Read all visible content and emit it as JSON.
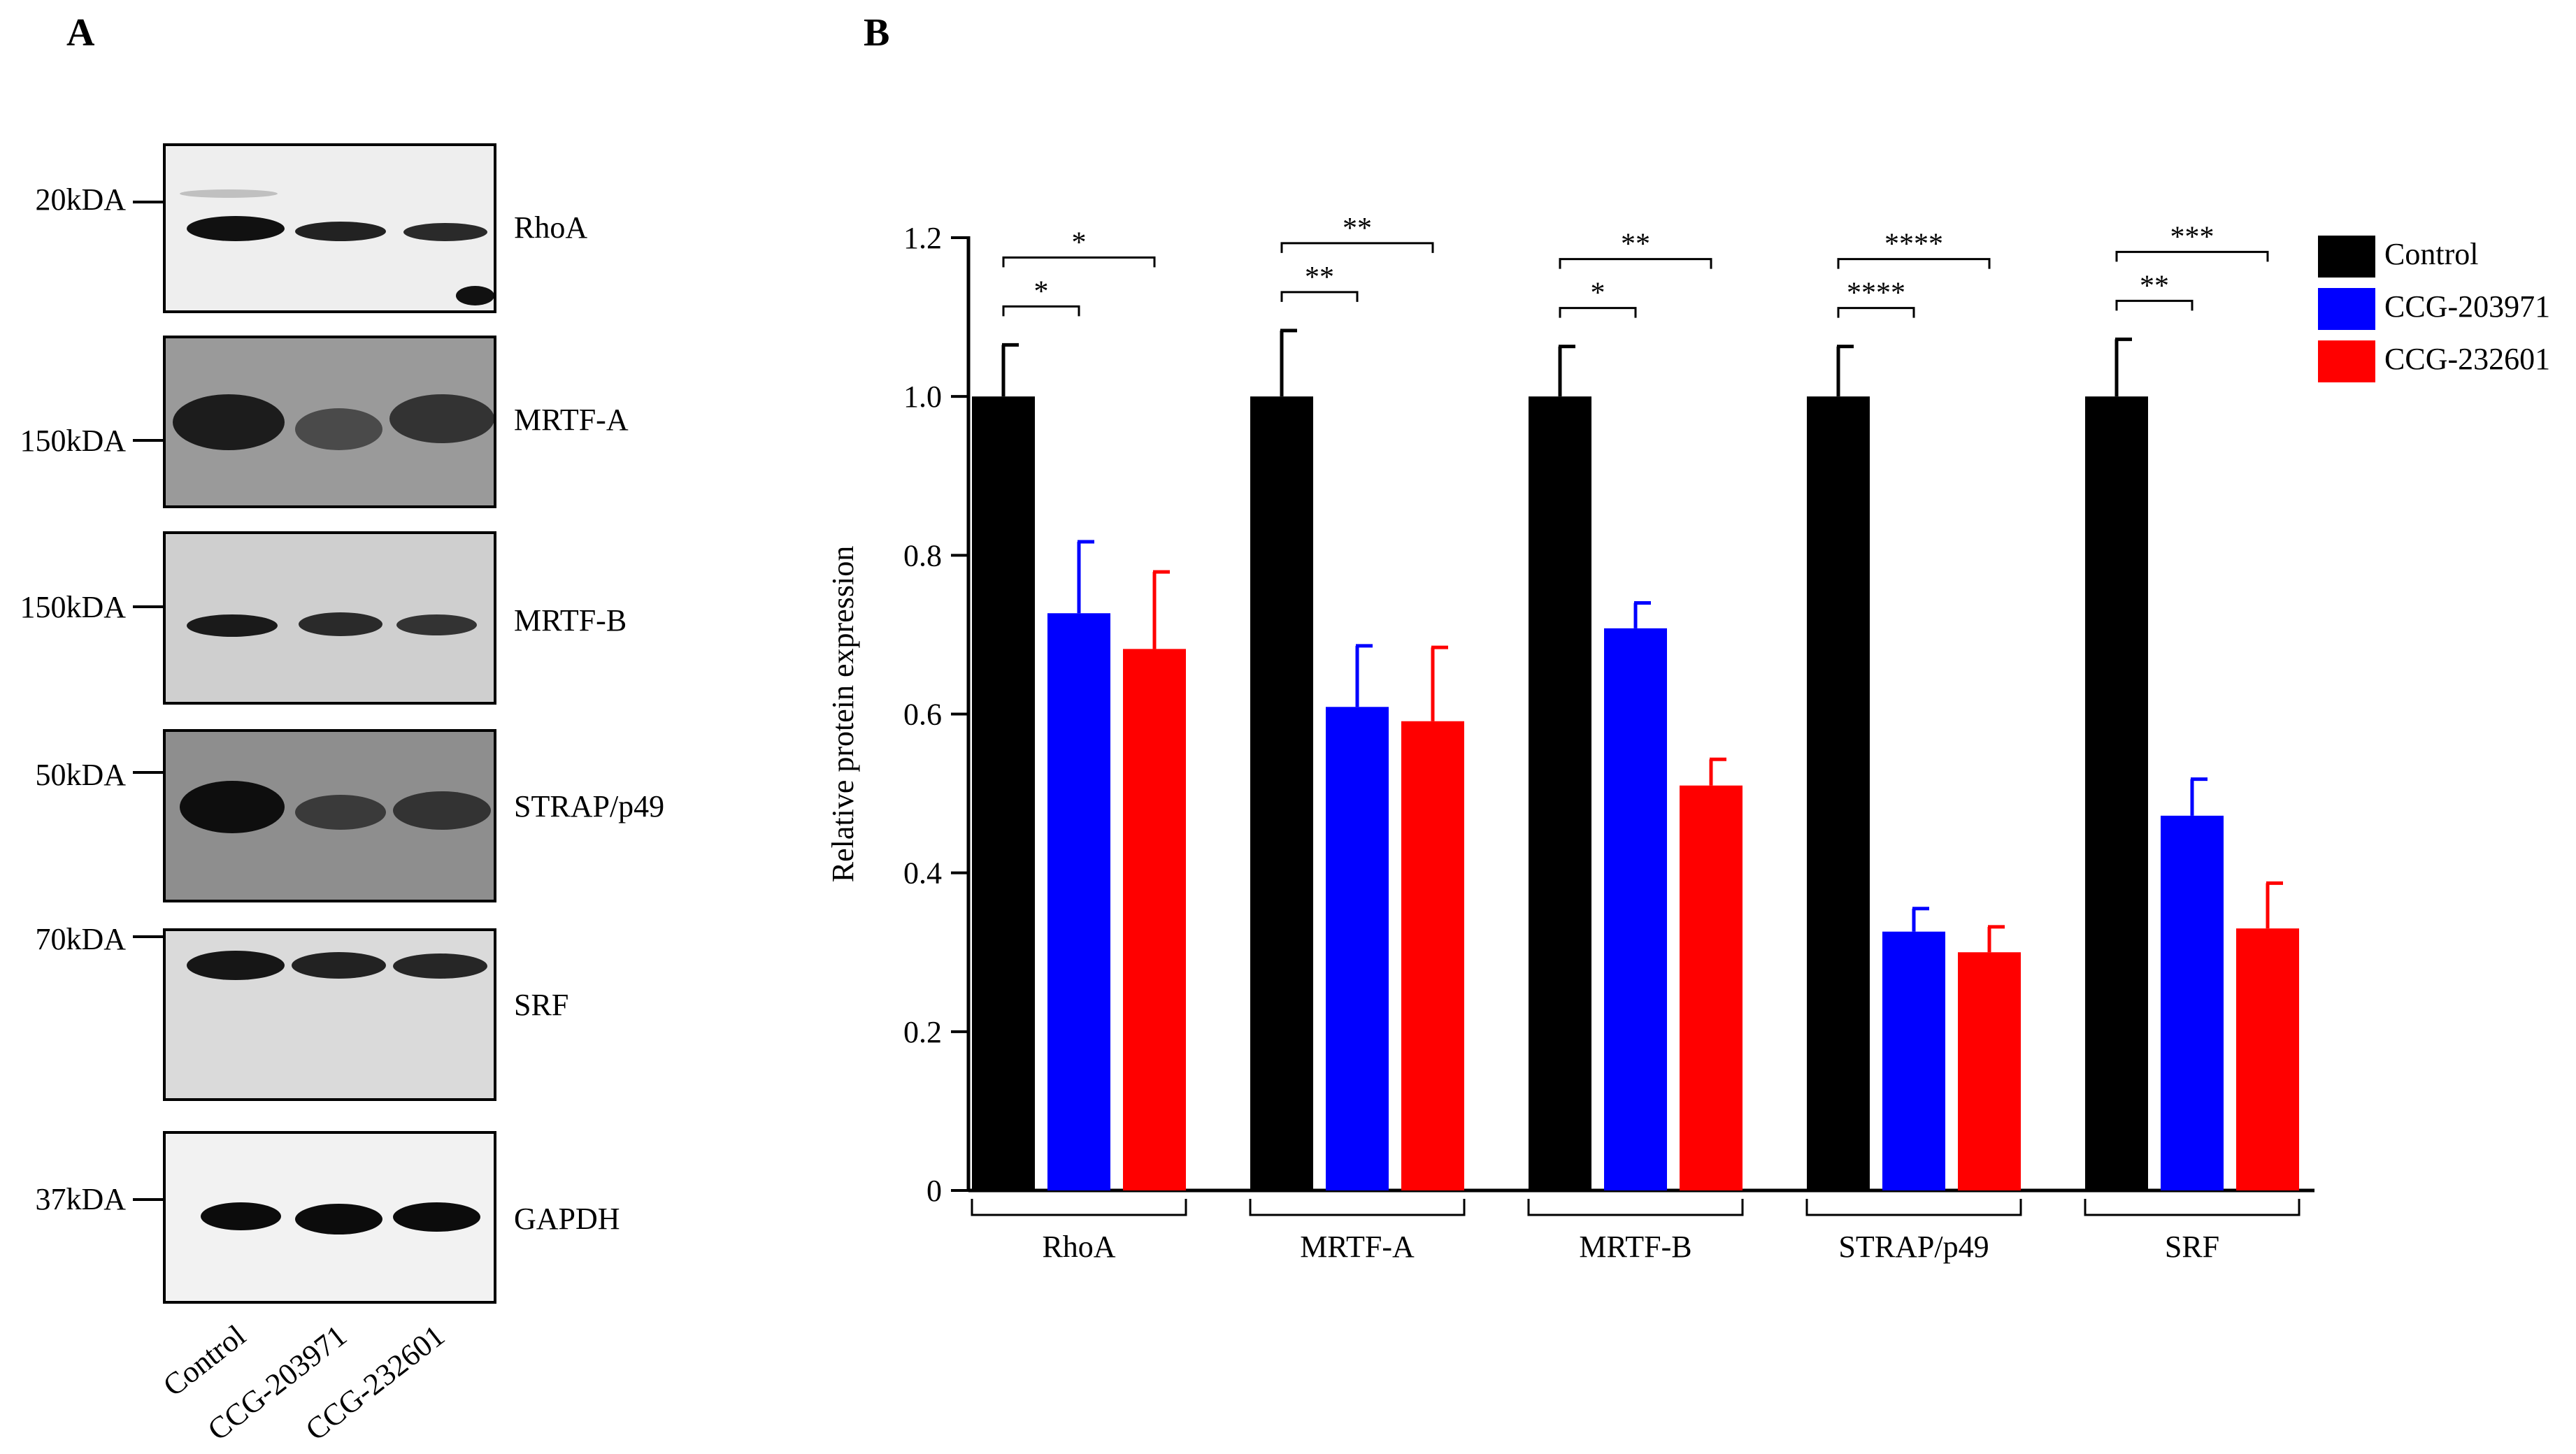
{
  "panels": {
    "a_label": "A",
    "b_label": "B"
  },
  "blots": [
    {
      "marker": "20kDA",
      "protein": "RhoA"
    },
    {
      "marker": "150kDA",
      "protein": "MRTF-A"
    },
    {
      "marker": "150kDA",
      "protein": "MRTF-B"
    },
    {
      "marker": "50kDA",
      "protein": "STRAP/p49"
    },
    {
      "marker": "70kDA",
      "protein": "SRF"
    },
    {
      "marker": "37kDA",
      "protein": "GAPDH"
    }
  ],
  "lanes": [
    "Control",
    "CCG-203971",
    "CCG-232601"
  ],
  "colors": {
    "control": "#000000",
    "ccg203971": "#0000ff",
    "ccg232601": "#ff0000"
  },
  "chart_data": {
    "type": "bar",
    "title": "",
    "xlabel": "",
    "ylabel": "Relative protein expression",
    "ylim": [
      0,
      1.2
    ],
    "yticks": [
      0,
      0.2,
      0.4,
      0.6,
      0.8,
      1.0,
      1.2
    ],
    "ytick_labels": [
      "0",
      "0.2",
      "0.4",
      "0.6",
      "0.8",
      "1.0",
      "1.2"
    ],
    "categories": [
      "RhoA",
      "MRTF-A",
      "MRTF-B",
      "STRAP/p49",
      "SRF"
    ],
    "series": [
      {
        "name": "Control",
        "color": "#000000",
        "values": [
          1.0,
          1.0,
          1.0,
          1.0,
          1.0
        ],
        "errors": [
          0.065,
          0.083,
          0.063,
          0.063,
          0.072
        ]
      },
      {
        "name": "CCG-203971",
        "color": "#0000ff",
        "values": [
          0.727,
          0.609,
          0.708,
          0.326,
          0.472
        ],
        "errors": [
          0.09,
          0.077,
          0.032,
          0.029,
          0.046
        ]
      },
      {
        "name": "CCG-232601",
        "color": "#ff0000",
        "values": [
          0.682,
          0.591,
          0.51,
          0.3,
          0.33
        ],
        "errors": [
          0.097,
          0.093,
          0.033,
          0.032,
          0.057
        ]
      }
    ],
    "significance": [
      {
        "category": "RhoA",
        "pair": "Control vs CCG-203971",
        "label": "*"
      },
      {
        "category": "RhoA",
        "pair": "Control vs CCG-232601",
        "label": "*"
      },
      {
        "category": "MRTF-A",
        "pair": "Control vs CCG-203971",
        "label": "**"
      },
      {
        "category": "MRTF-A",
        "pair": "Control vs CCG-232601",
        "label": "**"
      },
      {
        "category": "MRTF-B",
        "pair": "Control vs CCG-203971",
        "label": "*"
      },
      {
        "category": "MRTF-B",
        "pair": "Control vs CCG-232601",
        "label": "**"
      },
      {
        "category": "STRAP/p49",
        "pair": "Control vs CCG-203971",
        "label": "****"
      },
      {
        "category": "STRAP/p49",
        "pair": "Control vs CCG-232601",
        "label": "****"
      },
      {
        "category": "SRF",
        "pair": "Control vs CCG-203971",
        "label": "**"
      },
      {
        "category": "SRF",
        "pair": "Control vs CCG-232601",
        "label": "***"
      }
    ],
    "legend": {
      "position": "top-right",
      "entries": [
        "Control",
        "CCG-203971",
        "CCG-232601"
      ]
    }
  }
}
